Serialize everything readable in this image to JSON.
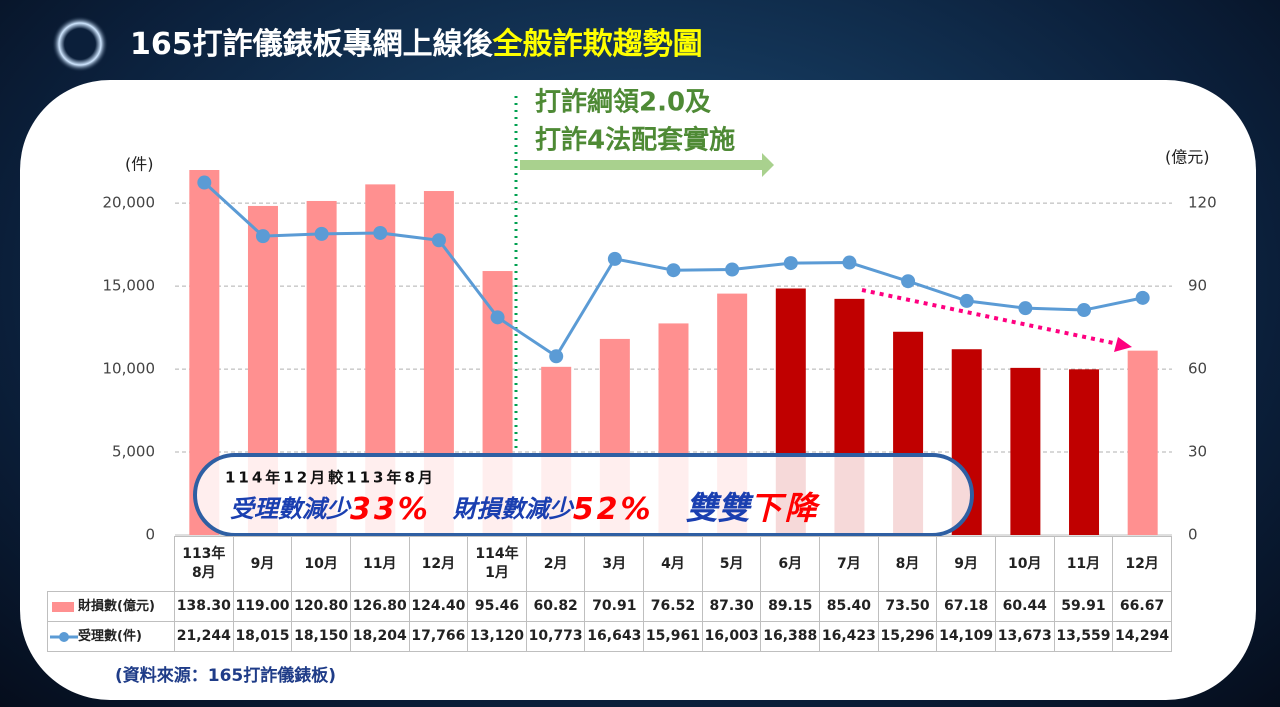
{
  "chart_data": {
    "type": "bar_line",
    "title": "165打詐儀錶板專網上線後",
    "title_highlight": "全般詐欺趨勢圖",
    "y_axis_label": "(件)",
    "y2_axis_label": "(億元)",
    "categories": [
      "113年\n8月",
      "9月",
      "10月",
      "11月",
      "12月",
      "114年\n1月",
      "2月",
      "3月",
      "4月",
      "5月",
      "6月",
      "7月",
      "8月",
      "9月",
      "10月",
      "11月",
      "12月"
    ],
    "series": [
      {
        "name": "財損數(億元)",
        "type": "bar",
        "axis": "y2",
        "colors": [
          "#ff9090",
          "#ff9090",
          "#ff9090",
          "#ff9090",
          "#ff9090",
          "#ff9090",
          "#ff9090",
          "#ff9090",
          "#ff9090",
          "#ff9090",
          "#c00000",
          "#c00000",
          "#c00000",
          "#c00000",
          "#c00000",
          "#c00000",
          "#ff9090"
        ],
        "values": [
          138.3,
          119.0,
          120.8,
          126.8,
          124.4,
          95.46,
          60.82,
          70.91,
          76.52,
          87.3,
          89.15,
          85.4,
          73.5,
          67.18,
          60.44,
          59.91,
          66.67
        ],
        "value_labels": [
          "138.30",
          "119.00",
          "120.80",
          "126.80",
          "124.40",
          "95.46",
          "60.82",
          "70.91",
          "76.52",
          "87.30",
          "89.15",
          "85.40",
          "73.50",
          "67.18",
          "60.44",
          "59.91",
          "66.67"
        ]
      },
      {
        "name": "受理數(件)",
        "type": "line",
        "color": "#5b9bd5",
        "values": [
          21244,
          18015,
          18150,
          18204,
          17766,
          13120,
          10773,
          16643,
          15961,
          16003,
          16388,
          16423,
          15296,
          14109,
          13673,
          13559,
          14294
        ],
        "value_labels": [
          "21,244",
          "18,015",
          "18,150",
          "18,204",
          "17,766",
          "13,120",
          "10,773",
          "16,643",
          "15,961",
          "16,003",
          "16,388",
          "16,423",
          "15,296",
          "14,109",
          "13,673",
          "13,559",
          "14,294"
        ]
      }
    ],
    "ylim": [
      0,
      22000
    ],
    "yticks": [
      0,
      {
        "value": 5000,
        "label": "5,000"
      },
      {
        "value": 10000,
        "label": "10,000"
      },
      {
        "value": 15000,
        "label": "15,000"
      },
      {
        "value": 20000,
        "label": "20,000"
      }
    ],
    "y2lim": [
      0,
      132
    ],
    "y2ticks": [
      0,
      30,
      60,
      90,
      120
    ],
    "grid": true,
    "policy": [
      "打詐綱領2.0及",
      "打詐4法配套實施"
    ],
    "callout": {
      "heading": "114年12月較113年8月",
      "item1": "受理數減少",
      "value1": "33%",
      "item2": "財損數減少",
      "value2": "52%",
      "conclusion1": "雙雙",
      "conclusion2": "下降"
    },
    "source": "(資料來源：165打詐儀錶板)"
  }
}
